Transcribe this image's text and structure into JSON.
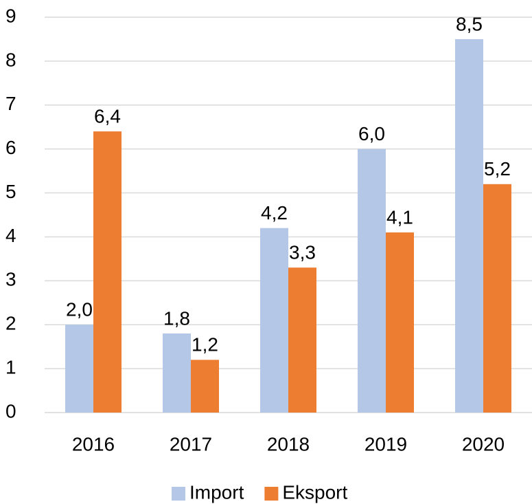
{
  "chart_data": {
    "type": "bar",
    "categories": [
      "2016",
      "2017",
      "2018",
      "2019",
      "2020"
    ],
    "series": [
      {
        "name": "Import",
        "color": "#b4c7e7",
        "values": [
          2.0,
          1.8,
          4.2,
          6.0,
          8.5
        ],
        "value_labels": [
          "2,0",
          "1,8",
          "4,2",
          "6,0",
          "8,5"
        ]
      },
      {
        "name": "Eksport",
        "color": "#ed7d31",
        "values": [
          6.4,
          1.2,
          3.3,
          4.1,
          5.2
        ],
        "value_labels": [
          "6,4",
          "1,2",
          "3,3",
          "4,1",
          "5,2"
        ]
      }
    ],
    "ylim": [
      0,
      9
    ],
    "yticks": [
      0,
      1,
      2,
      3,
      4,
      5,
      6,
      7,
      8,
      9
    ],
    "grid": true,
    "legend": "bottom"
  }
}
